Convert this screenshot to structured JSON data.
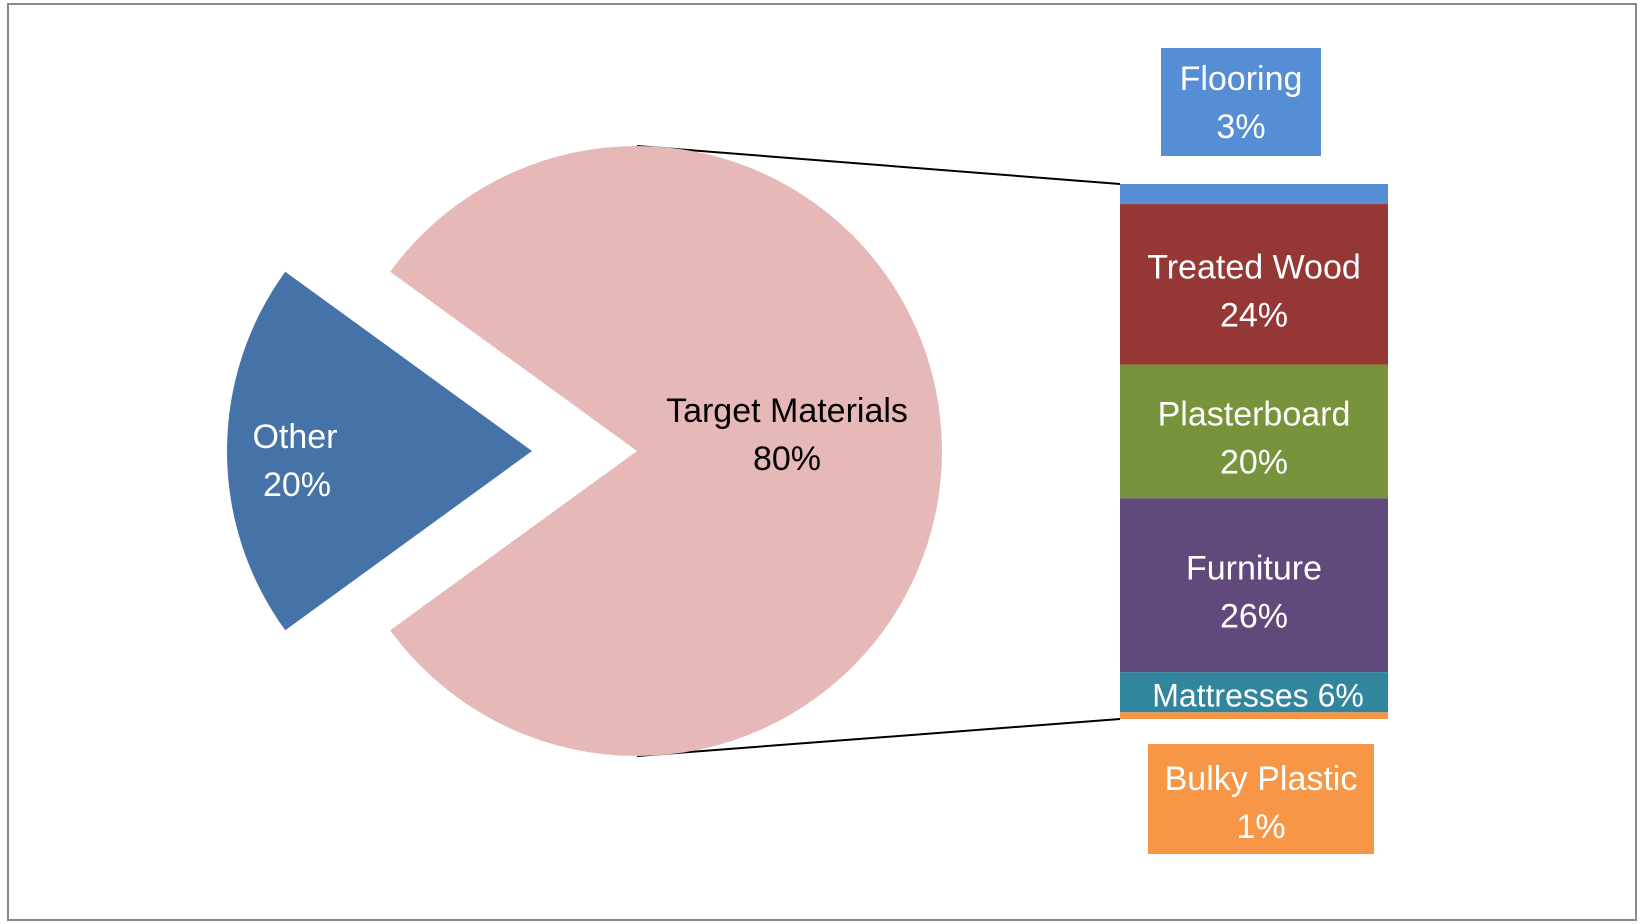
{
  "chart_data": {
    "type": "pie",
    "subtype": "bar-of-pie",
    "pie": {
      "slices": [
        {
          "label": "Target Materials",
          "value": 80,
          "display": "80%",
          "color": "#e6b8b7",
          "label_color": "#000000"
        },
        {
          "label": "Other",
          "value": 20,
          "display": "20%",
          "color": "#4572a7",
          "label_color": "#ffffff"
        }
      ]
    },
    "breakdown": {
      "of": "Target Materials",
      "segments": [
        {
          "label": "Flooring",
          "value": 3,
          "display": "3%",
          "color": "#558ed5",
          "callout": "above"
        },
        {
          "label": "Treated Wood",
          "value": 24,
          "display": "24%",
          "color": "#953735"
        },
        {
          "label": "Plasterboard",
          "value": 20,
          "display": "20%",
          "color": "#77933c"
        },
        {
          "label": "Furniture",
          "value": 26,
          "display": "26%",
          "color": "#604a7b"
        },
        {
          "label": "Mattresses",
          "value": 6,
          "display": "6%",
          "color": "#31859c",
          "inline": true
        },
        {
          "label": "Bulky Plastic",
          "value": 1,
          "display": "1%",
          "color": "#f79646",
          "callout": "below"
        }
      ]
    },
    "border_color": "#888888"
  }
}
